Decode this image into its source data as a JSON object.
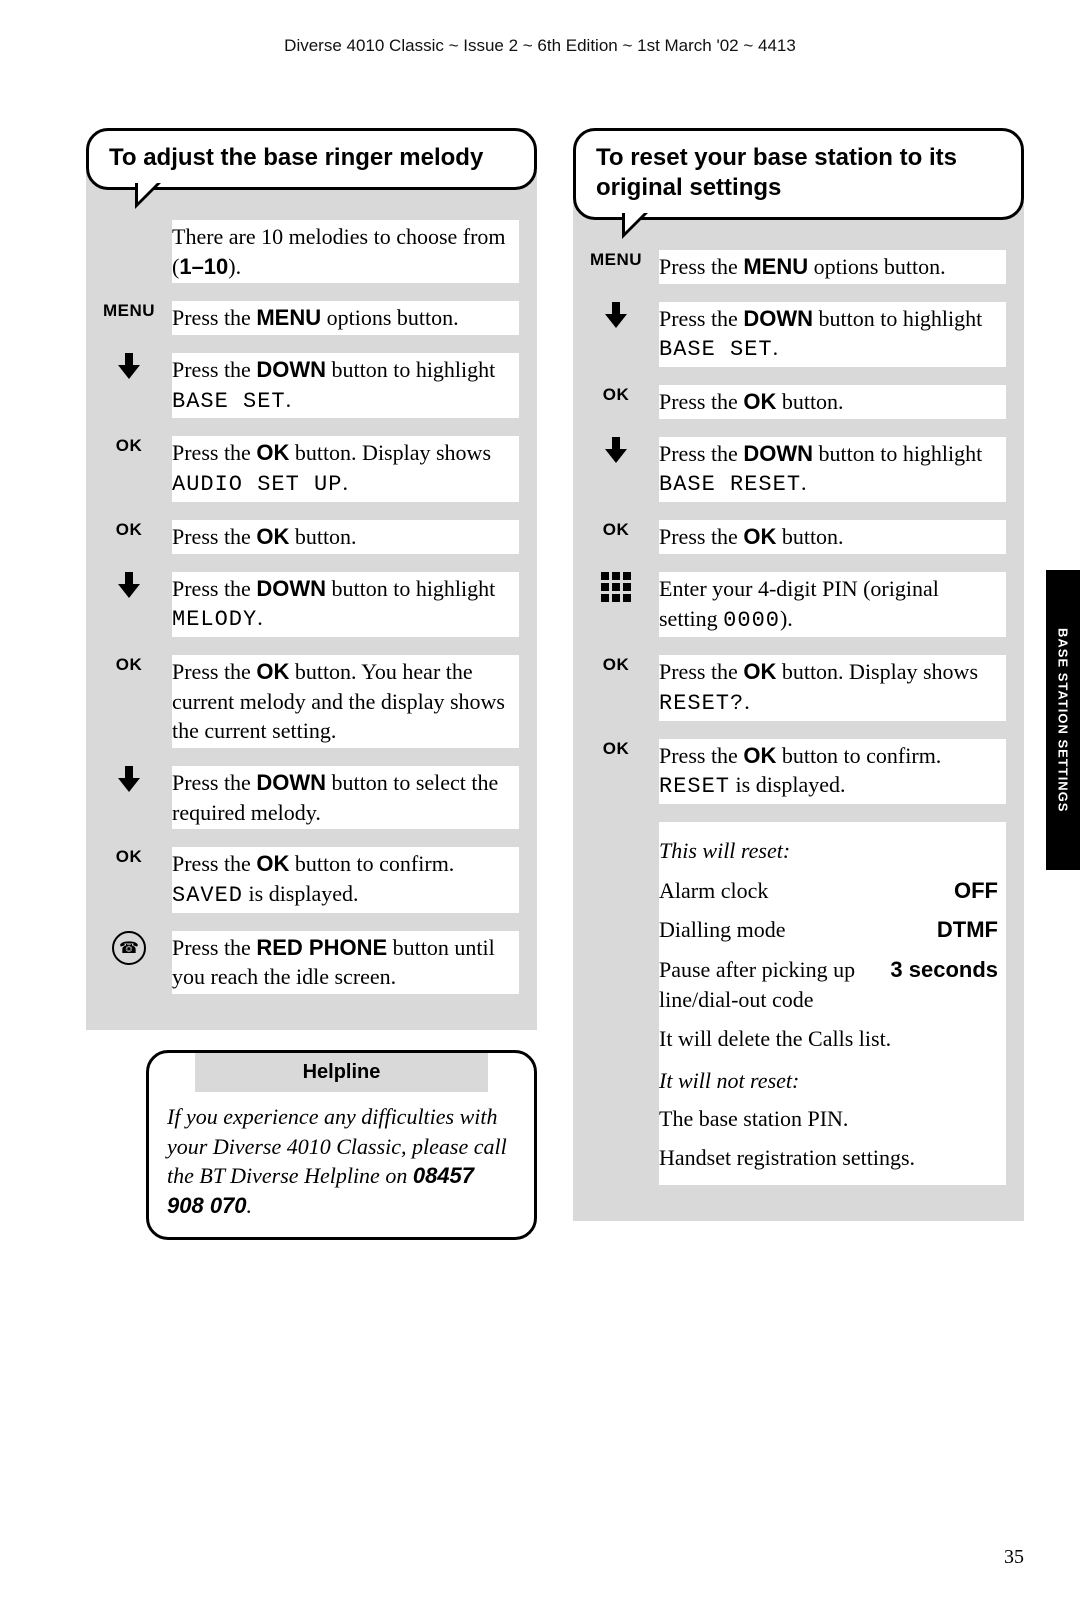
{
  "header_meta": "Diverse 4010 Classic ~ Issue 2 ~ 6th Edition ~ 1st March '02 ~ 4413",
  "page_number": "35",
  "side_tab": "BASE STATION SETTINGS",
  "left": {
    "title": "To adjust the base ringer melody",
    "intro_a": "There are 10 melodies to choose from (",
    "intro_b": "1–10",
    "intro_c": ").",
    "steps": [
      {
        "icon": "MENU",
        "a": "Press the ",
        "b": "MENU",
        "c": " options button."
      },
      {
        "icon": "down",
        "a": "Press the ",
        "b": "DOWN",
        "c": " button to highlight ",
        "lcd": "BASE SET",
        "d": "."
      },
      {
        "icon": "OK",
        "a": "Press the ",
        "b": "OK",
        "c": " button. Display shows ",
        "lcd": "AUDIO SET UP",
        "d": "."
      },
      {
        "icon": "OK",
        "a": "Press the ",
        "b": "OK",
        "c": " button."
      },
      {
        "icon": "down",
        "a": "Press the ",
        "b": "DOWN",
        "c": " button to highlight ",
        "lcd": "MELODY",
        "d": "."
      },
      {
        "icon": "OK",
        "a": "Press the ",
        "b": "OK",
        "c": " button. You hear the current melody and the display shows the current setting."
      },
      {
        "icon": "down",
        "a": "Press the ",
        "b": "DOWN",
        "c": " button to select the required melody."
      },
      {
        "icon": "OK",
        "a": "Press the ",
        "b": "OK",
        "c": " button to confirm. ",
        "lcd": "SAVED",
        "d": " is displayed."
      },
      {
        "icon": "phone",
        "a": "Press the ",
        "b": "RED PHONE",
        "c": " button until you reach the idle screen."
      }
    ],
    "helpline": {
      "title": "Helpline",
      "body_a": "If you experience any difficulties with your Diverse 4010 Classic, please call the BT Diverse Helpline on ",
      "body_b": "08457 908 070",
      "body_c": "."
    }
  },
  "right": {
    "title": "To reset your base station to its original settings",
    "steps": [
      {
        "icon": "MENU",
        "a": "Press the ",
        "b": "MENU",
        "c": " options button."
      },
      {
        "icon": "down",
        "a": "Press the ",
        "b": "DOWN",
        "c": " button to highlight ",
        "lcd": "BASE SET",
        "d": "."
      },
      {
        "icon": "OK",
        "a": "Press the ",
        "b": "OK",
        "c": " button."
      },
      {
        "icon": "down",
        "a": "Press the ",
        "b": "DOWN",
        "c": " button to highlight ",
        "lcd": "BASE RESET",
        "d": "."
      },
      {
        "icon": "OK",
        "a": "Press the ",
        "b": "OK",
        "c": " button."
      },
      {
        "icon": "keypad",
        "a": "Enter your 4-digit PIN (original setting ",
        "lcd": "0000",
        "d": ")."
      },
      {
        "icon": "OK",
        "a": "Press the ",
        "b": "OK",
        "c": " button. Display shows ",
        "lcd": "RESET?",
        "d": "."
      },
      {
        "icon": "OK",
        "a": "Press the ",
        "b": "OK",
        "c": " button to confirm. ",
        "lcd": "RESET",
        "d": " is displayed."
      }
    ],
    "reset_header": "This will reset:",
    "reset_rows": [
      {
        "label": "Alarm clock",
        "val": "OFF"
      },
      {
        "label": "Dialling mode",
        "val": "DTMF"
      },
      {
        "label": "Pause after picking up line/dial-out code",
        "val": "3 seconds"
      }
    ],
    "reset_note": "It will delete the Calls list.",
    "not_reset_header": "It will not reset:",
    "not_reset_items": [
      "The base station PIN.",
      "Handset registration settings."
    ]
  }
}
